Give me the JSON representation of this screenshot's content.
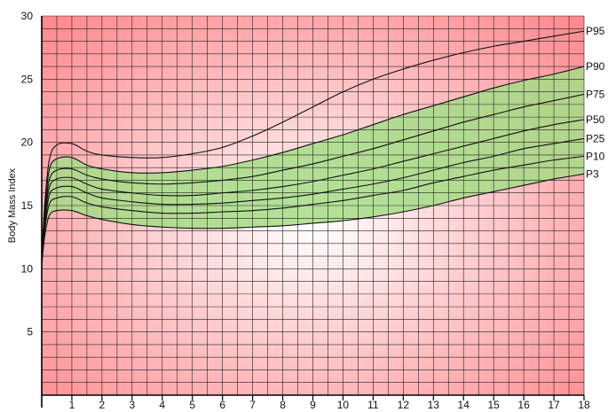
{
  "chart_data": {
    "type": "line",
    "title": "",
    "xlabel": "",
    "ylabel": "Body Mass Index",
    "xlim": [
      0,
      18
    ],
    "ylim": [
      0,
      30
    ],
    "x_ticks": [
      1,
      2,
      3,
      4,
      5,
      6,
      7,
      8,
      9,
      10,
      11,
      12,
      13,
      14,
      15,
      16,
      17,
      18
    ],
    "y_ticks": [
      5,
      10,
      15,
      20,
      25,
      30
    ],
    "grid": true,
    "normal_band": [
      "P3",
      "P90"
    ],
    "x": [
      0,
      0.1,
      0.25,
      0.5,
      1,
      1.5,
      2,
      3,
      4,
      5,
      6,
      7,
      8,
      9,
      10,
      11,
      12,
      13,
      14,
      15,
      16,
      17,
      18
    ],
    "series": [
      {
        "name": "P95",
        "values": [
          11.0,
          15.0,
          18.6,
          19.8,
          19.9,
          19.3,
          19.0,
          18.8,
          18.8,
          19.1,
          19.6,
          20.5,
          21.6,
          22.8,
          24.0,
          25.0,
          25.8,
          26.5,
          27.1,
          27.6,
          28.0,
          28.4,
          28.8
        ]
      },
      {
        "name": "P90",
        "values": [
          10.8,
          14.5,
          17.8,
          18.7,
          18.8,
          18.2,
          17.9,
          17.6,
          17.6,
          17.8,
          18.1,
          18.6,
          19.2,
          19.9,
          20.6,
          21.4,
          22.2,
          22.9,
          23.6,
          24.3,
          24.9,
          25.4,
          26.0
        ]
      },
      {
        "name": "P75",
        "values": [
          10.7,
          14.2,
          17.0,
          17.8,
          17.9,
          17.4,
          17.1,
          16.8,
          16.7,
          16.8,
          17.0,
          17.3,
          17.8,
          18.3,
          18.9,
          19.5,
          20.2,
          20.9,
          21.6,
          22.2,
          22.8,
          23.3,
          23.8
        ]
      },
      {
        "name": "P50",
        "values": [
          10.6,
          13.8,
          16.4,
          17.1,
          17.2,
          16.7,
          16.3,
          16.0,
          15.8,
          15.8,
          16.0,
          16.2,
          16.5,
          16.9,
          17.4,
          17.9,
          18.5,
          19.1,
          19.7,
          20.3,
          20.9,
          21.4,
          21.8
        ]
      },
      {
        "name": "P25",
        "values": [
          10.5,
          13.4,
          15.8,
          16.4,
          16.5,
          16.0,
          15.6,
          15.3,
          15.1,
          15.1,
          15.2,
          15.4,
          15.6,
          15.9,
          16.3,
          16.7,
          17.2,
          17.8,
          18.4,
          18.9,
          19.5,
          19.9,
          20.3
        ]
      },
      {
        "name": "P10",
        "values": [
          10.4,
          13.1,
          15.1,
          15.6,
          15.7,
          15.2,
          14.9,
          14.6,
          14.4,
          14.4,
          14.5,
          14.6,
          14.8,
          15.1,
          15.4,
          15.8,
          16.2,
          16.8,
          17.3,
          17.8,
          18.2,
          18.6,
          18.9
        ]
      },
      {
        "name": "P3",
        "values": [
          10.3,
          12.6,
          14.2,
          14.6,
          14.6,
          14.2,
          13.9,
          13.5,
          13.3,
          13.2,
          13.2,
          13.3,
          13.4,
          13.6,
          13.8,
          14.1,
          14.5,
          15.0,
          15.6,
          16.1,
          16.6,
          17.1,
          17.5
        ]
      }
    ]
  },
  "colors": {
    "zone_center": "#ffffff",
    "zone_edge": "#ff8a8f",
    "band_fill": "#a4dd86",
    "band_fill_opacity": 0.85,
    "grid_line": "#222222",
    "curve_line": "#111111"
  }
}
